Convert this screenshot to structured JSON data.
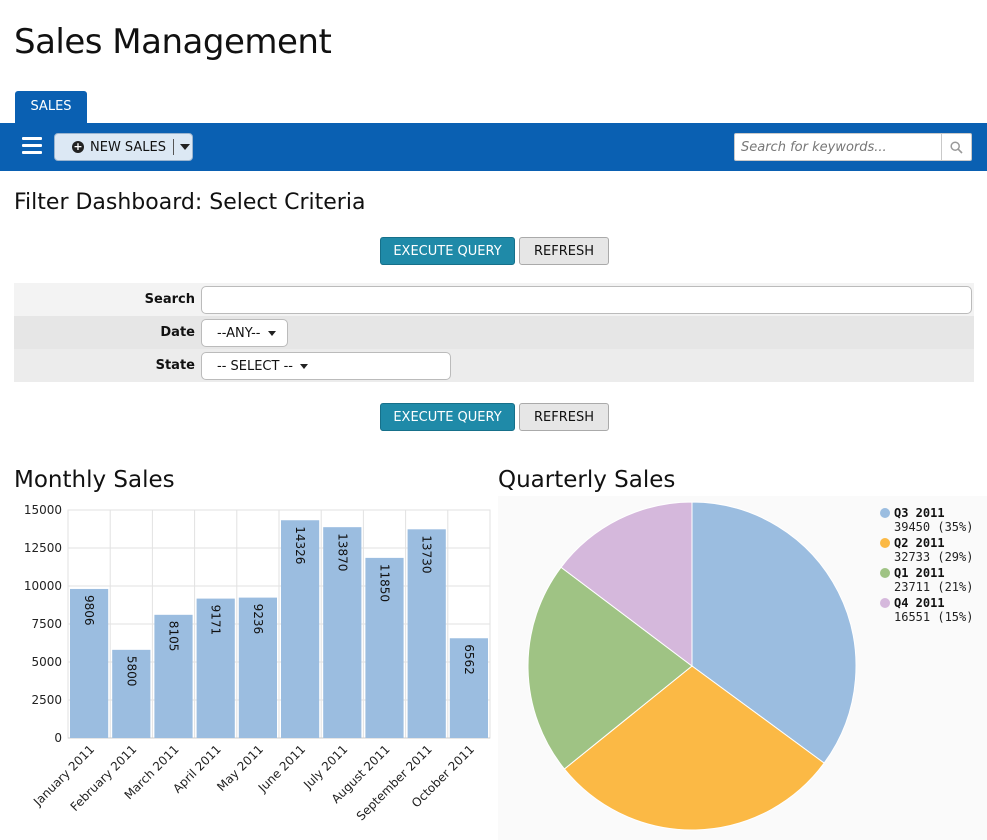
{
  "app": {
    "title": "Sales Management"
  },
  "tabs": [
    {
      "label": "SALES",
      "active": true
    }
  ],
  "toolbar": {
    "menu_icon": "hamburger-icon",
    "new_sales_label": "NEW SALES",
    "new_sales_icon": "plus-circle-icon",
    "search_placeholder": "Search for keywords...",
    "search_icon": "magnifier-icon"
  },
  "filter": {
    "title": "Filter Dashboard: Select Criteria",
    "execute_label": "EXECUTE QUERY",
    "refresh_label": "REFRESH",
    "fields": {
      "search": {
        "label": "Search",
        "value": ""
      },
      "date": {
        "label": "Date",
        "value": "--ANY--"
      },
      "state": {
        "label": "State",
        "value": "-- SELECT --"
      }
    }
  },
  "colors": {
    "primary": "#0a60b2",
    "execute": "#1f8aa8",
    "bar": "#9bbde0",
    "q3": "#9bbde0",
    "q2": "#fbb945",
    "q1": "#9fc384",
    "q4": "#d5b8dc"
  },
  "charts": {
    "monthly": {
      "title": "Monthly Sales"
    },
    "quarterly": {
      "title": "Quarterly Sales"
    }
  },
  "chart_data": [
    {
      "type": "bar",
      "title": "Monthly Sales",
      "categories": [
        "January 2011",
        "February 2011",
        "March 2011",
        "April 2011",
        "May 2011",
        "June 2011",
        "July 2011",
        "August 2011",
        "September 2011",
        "October 2011"
      ],
      "values": [
        9806,
        5800,
        8105,
        9171,
        9236,
        14326,
        13870,
        11850,
        13730,
        6562
      ],
      "ylim": [
        0,
        15000
      ],
      "yticks": [
        0,
        2500,
        5000,
        7500,
        10000,
        12500,
        15000
      ],
      "grid": true
    },
    {
      "type": "pie",
      "title": "Quarterly Sales",
      "legend_position": "top-right",
      "slices": [
        {
          "label": "Q3 2011",
          "value": 39450,
          "percent_label": "39450 (35%)",
          "color": "#9bbde0"
        },
        {
          "label": "Q2 2011",
          "value": 32733,
          "percent_label": "32733 (29%)",
          "color": "#fbb945"
        },
        {
          "label": "Q1 2011",
          "value": 23711,
          "percent_label": "23711 (21%)",
          "color": "#9fc384"
        },
        {
          "label": "Q4 2011",
          "value": 16551,
          "percent_label": "16551 (15%)",
          "color": "#d5b8dc"
        }
      ]
    }
  ]
}
